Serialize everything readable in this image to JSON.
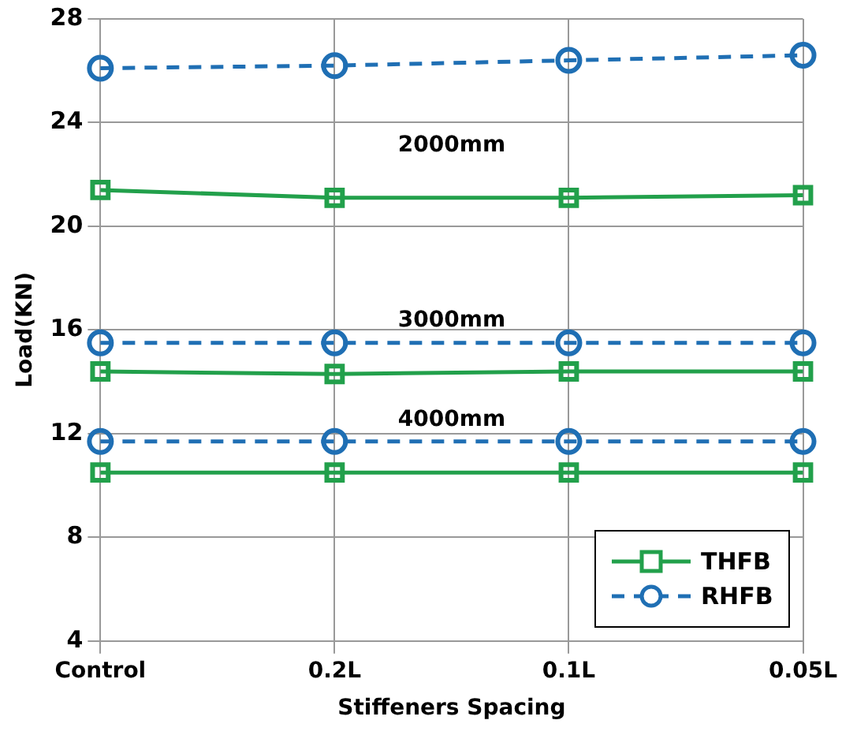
{
  "chart_data": {
    "type": "line",
    "xlabel": "Stiffeners Spacing",
    "ylabel": "Load(KN)",
    "categories": [
      "Control",
      "0.2L",
      "0.1L",
      "0.05L"
    ],
    "series": [
      {
        "name": "THFB",
        "color": "#22a04b",
        "marker": "square",
        "line_style": "solid",
        "values": [
          21.4,
          21.1,
          21.1,
          21.2
        ]
      },
      {
        "name": "RHFB",
        "color": "#1f6fb4",
        "marker": "circle",
        "line_style": "dashed",
        "values": [
          26.1,
          26.2,
          26.4,
          26.6
        ]
      },
      {
        "color": "#22a04b",
        "marker": "square",
        "line_style": "solid",
        "values": [
          14.4,
          14.3,
          14.4,
          14.4
        ]
      },
      {
        "color": "#1f6fb4",
        "marker": "circle",
        "line_style": "dashed",
        "values": [
          15.5,
          15.5,
          15.5,
          15.5
        ]
      },
      {
        "color": "#22a04b",
        "marker": "square",
        "line_style": "solid",
        "values": [
          10.5,
          10.5,
          10.5,
          10.5
        ]
      },
      {
        "color": "#1f6fb4",
        "marker": "circle",
        "line_style": "dashed",
        "values": [
          11.7,
          11.7,
          11.7,
          11.7
        ]
      }
    ],
    "ylim": [
      4,
      28
    ],
    "yticks": [
      4,
      8,
      12,
      16,
      20,
      24,
      28
    ],
    "grid": true,
    "legend": "bottom right",
    "annotations": [
      "2000mm",
      "3000mm",
      "4000mm"
    ]
  }
}
